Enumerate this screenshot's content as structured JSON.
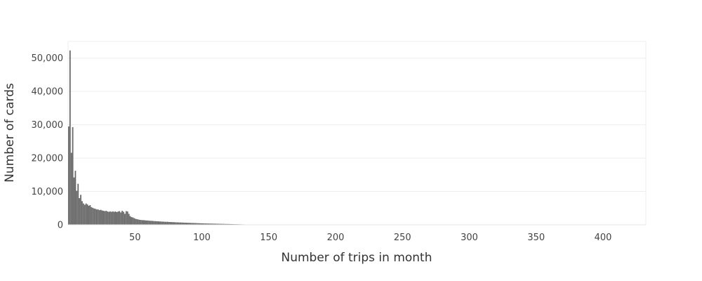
{
  "chart_data": {
    "type": "histogram",
    "title": "",
    "xlabel": "Number of trips in month",
    "ylabel": "Number of cards",
    "xlim": [
      0,
      432
    ],
    "ylim": [
      0,
      55000
    ],
    "x_ticks": [
      50,
      100,
      150,
      200,
      250,
      300,
      350,
      400
    ],
    "x_tick_labels": [
      "50",
      "100",
      "150",
      "200",
      "250",
      "300",
      "350",
      "400"
    ],
    "y_ticks": [
      0,
      10000,
      20000,
      30000,
      40000,
      50000
    ],
    "y_tick_labels": [
      "0",
      "10,000",
      "20,000",
      "30,000",
      "40,000",
      "50,000"
    ],
    "grid": true,
    "bar_color": "#666666",
    "bin_start": 0,
    "bin_width": 1,
    "values": [
      29500,
      52300,
      21600,
      29300,
      14200,
      16200,
      10200,
      12300,
      8000,
      9000,
      7100,
      6400,
      6000,
      6400,
      6100,
      5700,
      5900,
      5300,
      5100,
      4900,
      4800,
      4600,
      4600,
      4400,
      4500,
      4300,
      4200,
      4100,
      4200,
      4000,
      3900,
      4000,
      3900,
      4000,
      3900,
      4000,
      3800,
      4000,
      4100,
      3700,
      4200,
      3900,
      3300,
      4100,
      4000,
      3300,
      2600,
      2300,
      2200,
      2000,
      1800,
      1700,
      1600,
      1500,
      1450,
      1400,
      1400,
      1350,
      1300,
      1300,
      1250,
      1200,
      1200,
      1150,
      1100,
      1100,
      1050,
      1050,
      1000,
      1000,
      950,
      950,
      900,
      900,
      900,
      850,
      850,
      800,
      800,
      780,
      750,
      750,
      720,
      700,
      700,
      680,
      650,
      650,
      620,
      600,
      600,
      580,
      560,
      550,
      540,
      520,
      500,
      480,
      470,
      450,
      440,
      420,
      410,
      400,
      390,
      380,
      370,
      360,
      350,
      340,
      330,
      320,
      310,
      300,
      290,
      280,
      270,
      260,
      250,
      240,
      230,
      220,
      210,
      200,
      190,
      180,
      170,
      160,
      150,
      140,
      130,
      120,
      100,
      80,
      60,
      50,
      40,
      30,
      25,
      20,
      15,
      12,
      10,
      8,
      6,
      5,
      4,
      3,
      2,
      1
    ]
  }
}
